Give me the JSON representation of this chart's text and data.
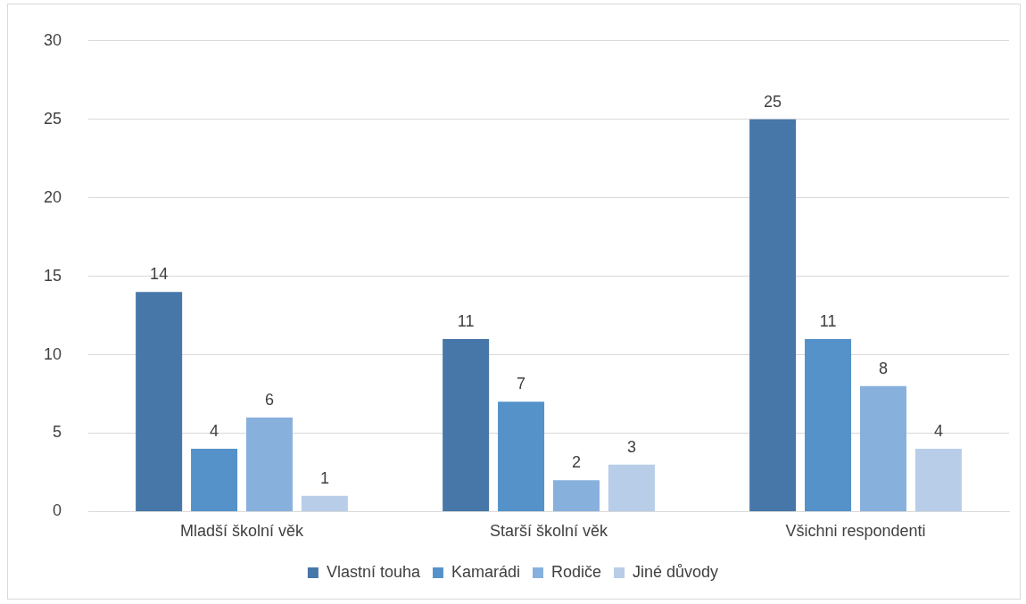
{
  "chart_data": {
    "type": "bar",
    "categories": [
      "Mladší školní věk",
      "Starší školní věk",
      "Všichni respondenti"
    ],
    "series": [
      {
        "name": "Vlastní touha",
        "color": "#4677a8",
        "values": [
          14,
          11,
          25
        ]
      },
      {
        "name": "Kamarádi",
        "color": "#5592c9",
        "values": [
          4,
          7,
          11
        ]
      },
      {
        "name": "Rodiče",
        "color": "#88b0dd",
        "values": [
          6,
          2,
          8
        ]
      },
      {
        "name": "Jiné důvody",
        "color": "#b8cde8",
        "values": [
          1,
          3,
          4
        ]
      }
    ],
    "ylim": [
      0,
      30
    ],
    "yticks": [
      0,
      5,
      10,
      15,
      20,
      25,
      30
    ],
    "grid": "y",
    "legend": "bottom",
    "data_labels": true
  }
}
